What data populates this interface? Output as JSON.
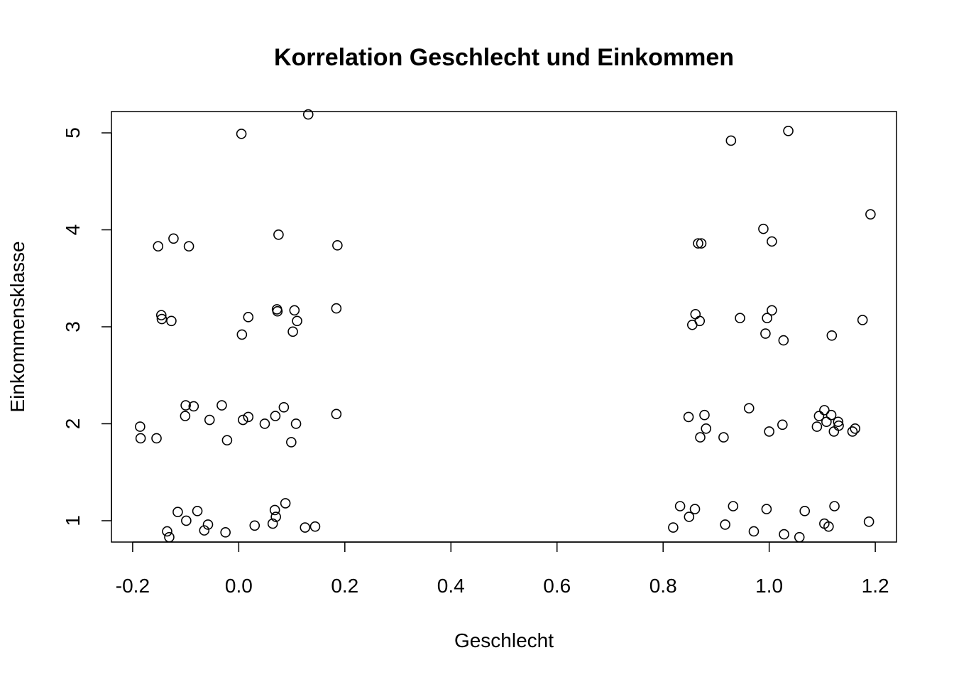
{
  "chart_data": {
    "type": "scatter",
    "title": "Korrelation Geschlecht und Einkommen",
    "xlabel": "Geschlecht",
    "ylabel": "Einkommensklasse",
    "xlim": [
      -0.24,
      1.24
    ],
    "ylim": [
      0.78,
      5.22
    ],
    "x_ticks": [
      -0.2,
      0.0,
      0.2,
      0.4,
      0.6,
      0.8,
      1.0,
      1.2
    ],
    "x_tick_labels": [
      "-0.2",
      "0.0",
      "0.2",
      "0.4",
      "0.6",
      "0.8",
      "1.0",
      "1.2"
    ],
    "y_ticks": [
      1,
      2,
      3,
      4,
      5
    ],
    "y_tick_labels": [
      "1",
      "2",
      "3",
      "4",
      "5"
    ],
    "grid": false,
    "marker": "open-circle",
    "points": [
      [
        0.005,
        4.99
      ],
      [
        0.131,
        5.19
      ],
      [
        -0.152,
        3.83
      ],
      [
        -0.123,
        3.91
      ],
      [
        -0.094,
        3.83
      ],
      [
        0.075,
        3.95
      ],
      [
        0.186,
        3.84
      ],
      [
        -0.146,
        3.12
      ],
      [
        -0.145,
        3.08
      ],
      [
        -0.127,
        3.06
      ],
      [
        0.018,
        3.1
      ],
      [
        0.006,
        2.92
      ],
      [
        0.072,
        3.18
      ],
      [
        0.073,
        3.16
      ],
      [
        0.105,
        3.17
      ],
      [
        0.11,
        3.06
      ],
      [
        0.102,
        2.95
      ],
      [
        0.184,
        3.19
      ],
      [
        -0.186,
        1.97
      ],
      [
        -0.185,
        1.85
      ],
      [
        -0.155,
        1.85
      ],
      [
        -0.1,
        2.19
      ],
      [
        -0.101,
        2.08
      ],
      [
        -0.085,
        2.18
      ],
      [
        -0.055,
        2.04
      ],
      [
        -0.032,
        2.19
      ],
      [
        -0.022,
        1.83
      ],
      [
        0.008,
        2.04
      ],
      [
        0.018,
        2.07
      ],
      [
        0.049,
        2.0
      ],
      [
        0.069,
        2.08
      ],
      [
        0.085,
        2.17
      ],
      [
        0.108,
        2.0
      ],
      [
        0.099,
        1.81
      ],
      [
        0.184,
        2.1
      ],
      [
        -0.115,
        1.09
      ],
      [
        -0.135,
        0.89
      ],
      [
        -0.131,
        0.83
      ],
      [
        -0.099,
        1.0
      ],
      [
        -0.078,
        1.1
      ],
      [
        -0.065,
        0.9
      ],
      [
        -0.058,
        0.96
      ],
      [
        -0.025,
        0.88
      ],
      [
        0.03,
        0.95
      ],
      [
        0.068,
        1.11
      ],
      [
        0.07,
        1.04
      ],
      [
        0.064,
        0.97
      ],
      [
        0.088,
        1.18
      ],
      [
        0.125,
        0.93
      ],
      [
        0.144,
        0.94
      ],
      [
        0.928,
        4.92
      ],
      [
        1.036,
        5.02
      ],
      [
        0.866,
        3.86
      ],
      [
        0.872,
        3.86
      ],
      [
        0.989,
        4.01
      ],
      [
        1.005,
        3.88
      ],
      [
        1.191,
        4.16
      ],
      [
        0.861,
        3.13
      ],
      [
        0.855,
        3.02
      ],
      [
        0.869,
        3.06
      ],
      [
        0.945,
        3.09
      ],
      [
        0.996,
        3.09
      ],
      [
        0.993,
        2.93
      ],
      [
        1.005,
        3.17
      ],
      [
        1.027,
        2.86
      ],
      [
        1.118,
        2.91
      ],
      [
        1.176,
        3.07
      ],
      [
        0.848,
        2.07
      ],
      [
        0.878,
        2.09
      ],
      [
        0.881,
        1.95
      ],
      [
        0.87,
        1.86
      ],
      [
        0.914,
        1.86
      ],
      [
        0.962,
        2.16
      ],
      [
        1.0,
        1.92
      ],
      [
        1.025,
        1.99
      ],
      [
        1.09,
        1.97
      ],
      [
        1.094,
        2.08
      ],
      [
        1.104,
        2.14
      ],
      [
        1.108,
        2.02
      ],
      [
        1.117,
        2.09
      ],
      [
        1.122,
        1.92
      ],
      [
        1.13,
        2.02
      ],
      [
        1.131,
        1.98
      ],
      [
        1.157,
        1.92
      ],
      [
        1.162,
        1.95
      ],
      [
        0.819,
        0.93
      ],
      [
        0.832,
        1.15
      ],
      [
        0.849,
        1.04
      ],
      [
        0.86,
        1.12
      ],
      [
        0.917,
        0.96
      ],
      [
        0.932,
        1.15
      ],
      [
        0.971,
        0.89
      ],
      [
        0.995,
        1.12
      ],
      [
        1.028,
        0.86
      ],
      [
        1.057,
        0.83
      ],
      [
        1.067,
        1.1
      ],
      [
        1.104,
        0.97
      ],
      [
        1.112,
        0.94
      ],
      [
        1.123,
        1.15
      ],
      [
        1.188,
        0.99
      ]
    ]
  }
}
